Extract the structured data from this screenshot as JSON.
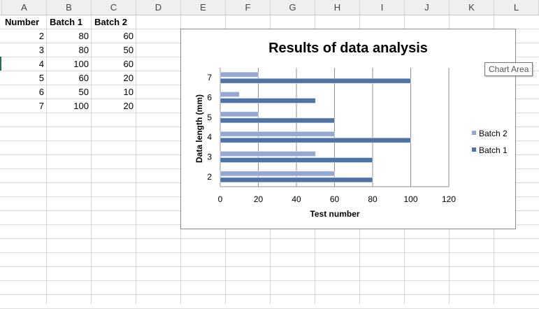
{
  "columns": [
    "A",
    "B",
    "C",
    "D",
    "E",
    "F",
    "G",
    "H",
    "I",
    "J",
    "K",
    "L"
  ],
  "table": {
    "headers": [
      "Number",
      "Batch 1",
      "Batch 2"
    ],
    "rows": [
      [
        "2",
        "80",
        "60"
      ],
      [
        "3",
        "80",
        "50"
      ],
      [
        "4",
        "100",
        "60"
      ],
      [
        "5",
        "60",
        "20"
      ],
      [
        "6",
        "50",
        "10"
      ],
      [
        "7",
        "100",
        "20"
      ]
    ]
  },
  "tooltip": "Chart Area",
  "colors": {
    "batch1": "#4f73a6",
    "batch2": "#94a8d1",
    "header_bg": "#efefef",
    "gridline": "#dadada",
    "selection": "#217346"
  },
  "chart_data": {
    "type": "bar",
    "orientation": "horizontal",
    "title": "Results of data analysis",
    "xlabel": "Test number",
    "ylabel": "Data length (mm)",
    "categories": [
      "2",
      "3",
      "4",
      "5",
      "6",
      "7"
    ],
    "series": [
      {
        "name": "Batch 1",
        "values": [
          80,
          80,
          100,
          60,
          50,
          100
        ]
      },
      {
        "name": "Batch 2",
        "values": [
          60,
          50,
          60,
          20,
          10,
          20
        ]
      }
    ],
    "xlim": [
      0,
      120
    ],
    "xticks": [
      "0",
      "20",
      "40",
      "60",
      "80",
      "100",
      "120"
    ],
    "grid": "vertical",
    "legend": "right"
  }
}
